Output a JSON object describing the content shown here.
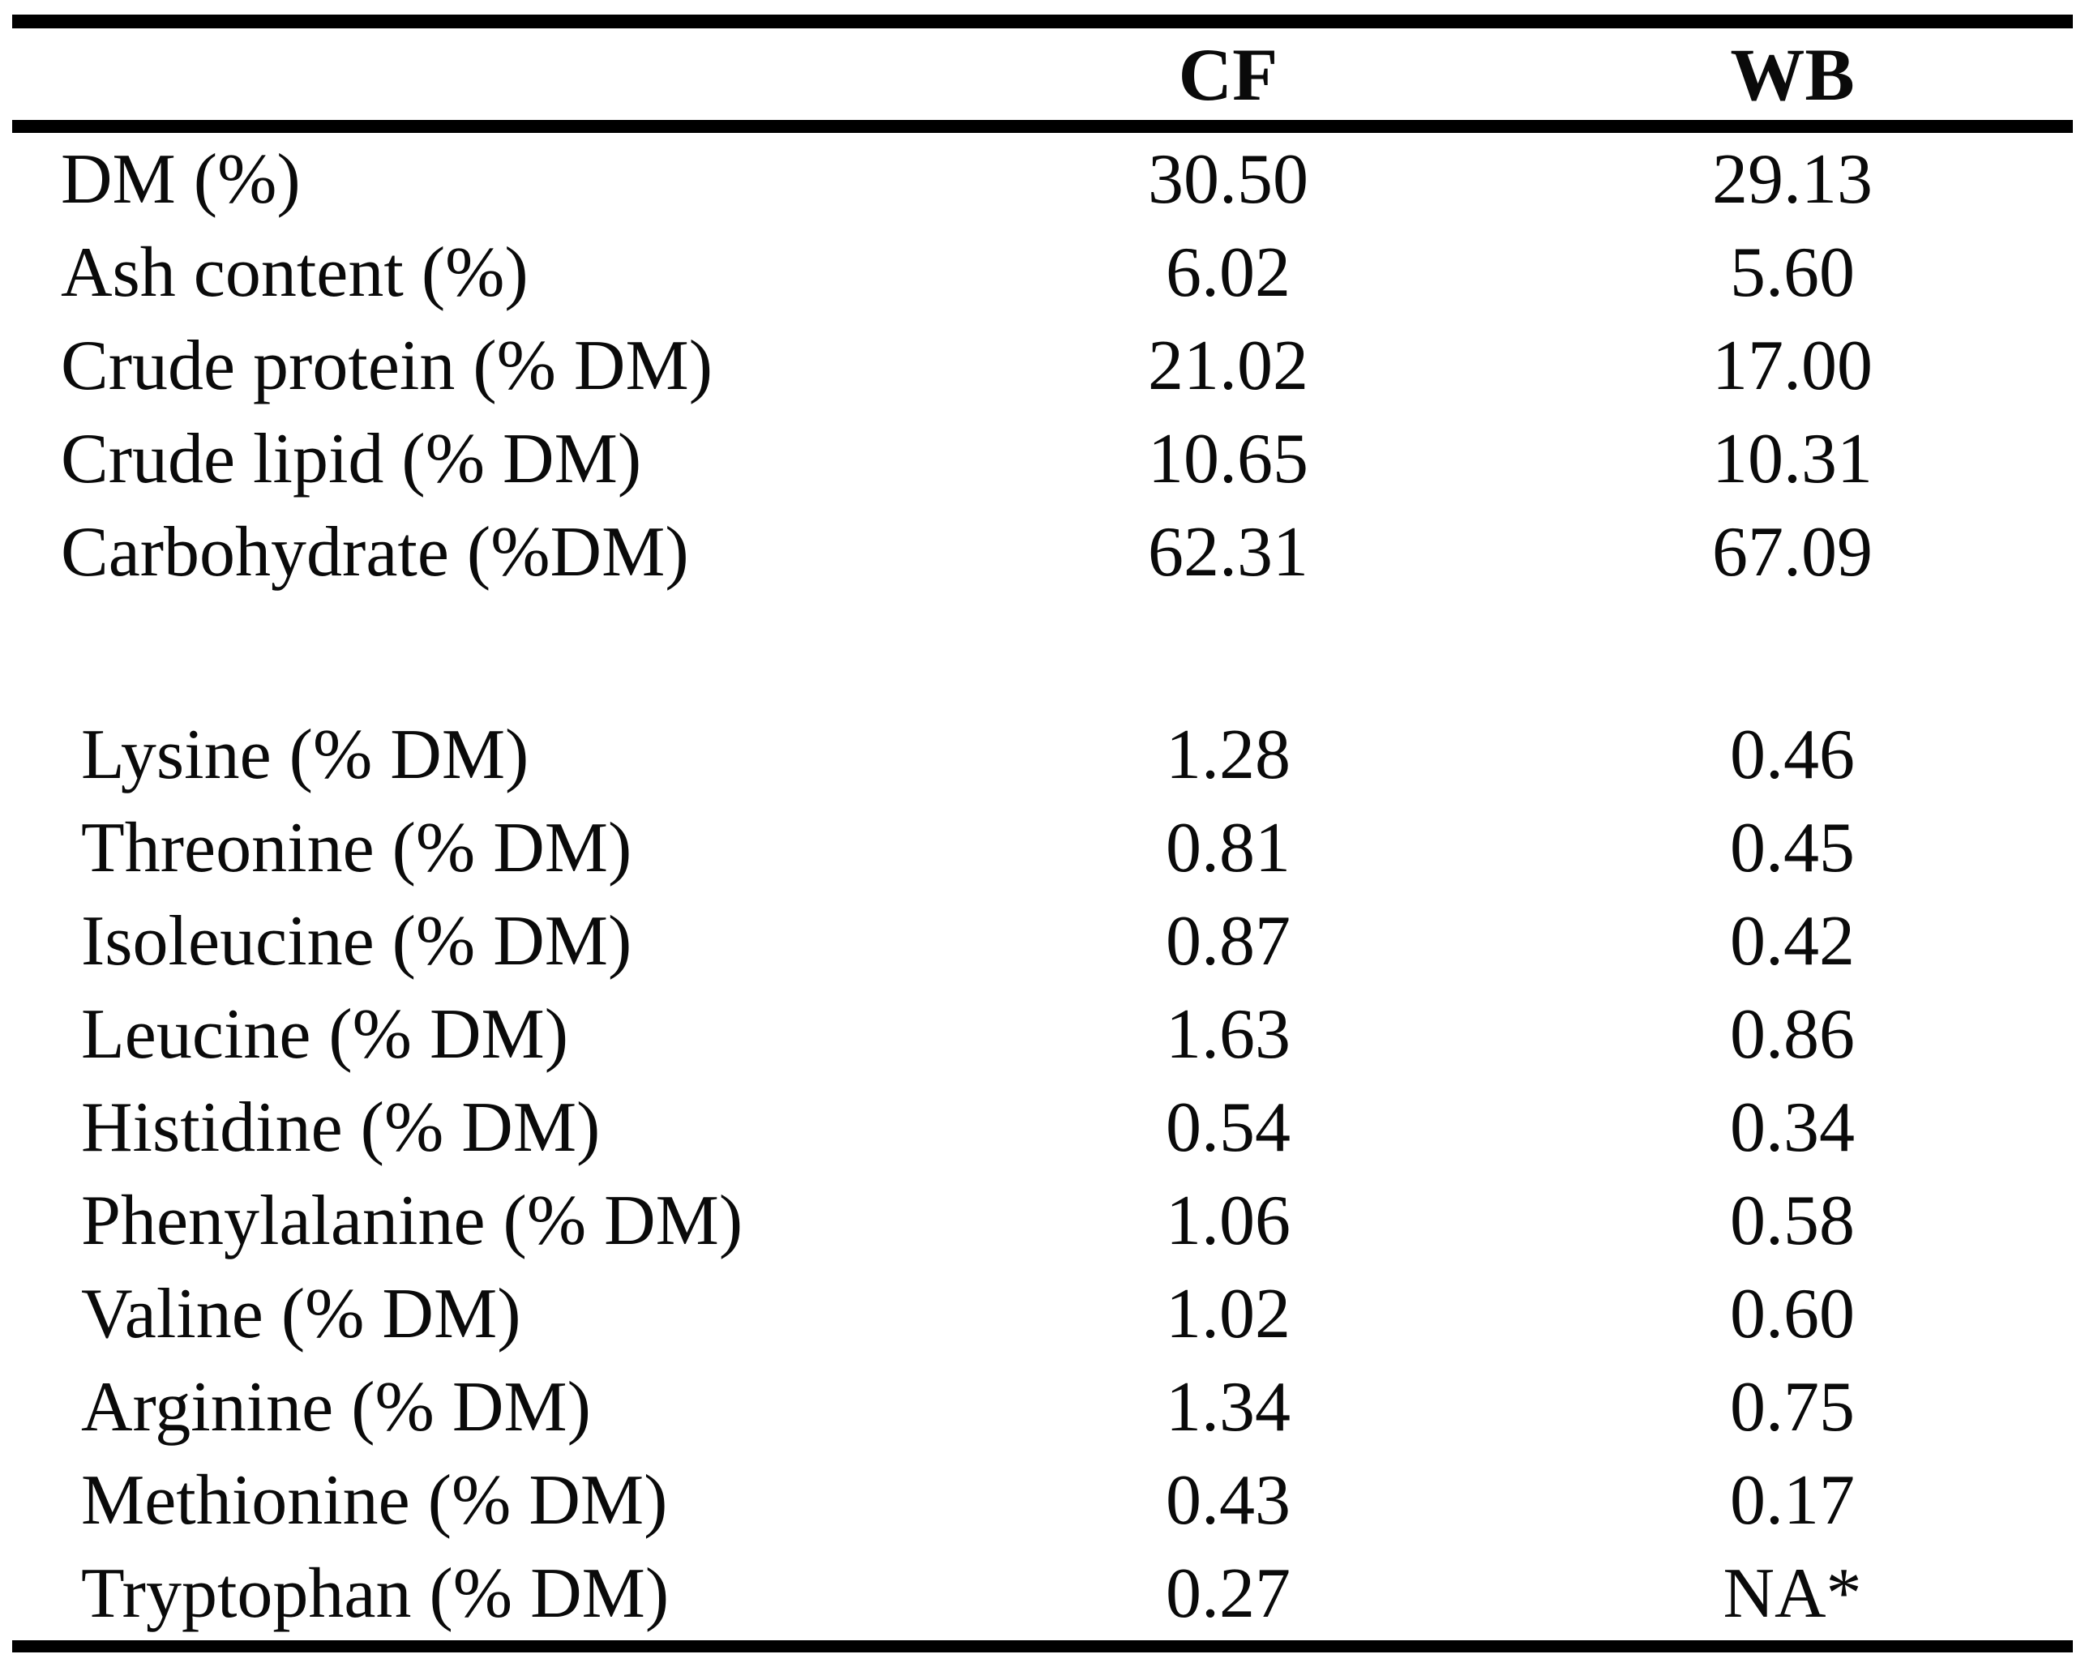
{
  "table": {
    "header": {
      "label_col": "",
      "cf": "CF",
      "wb": "WB"
    },
    "rows": [
      {
        "label": "DM (%)",
        "cf": "30.50",
        "wb": "29.13"
      },
      {
        "label": "Ash content (%)",
        "cf": "6.02",
        "wb": "5.60"
      },
      {
        "label": "Crude protein (% DM)",
        "cf": "21.02",
        "wb": "17.00"
      },
      {
        "label": "Crude lipid (% DM)",
        "cf": "10.65",
        "wb": "10.31"
      },
      {
        "label": "Carbohydrate (%DM)",
        "cf": "62.31",
        "wb": "67.09"
      },
      {
        "label": "Lysine (% DM)",
        "cf": "1.28",
        "wb": "0.46"
      },
      {
        "label": "Threonine (% DM)",
        "cf": "0.81",
        "wb": "0.45"
      },
      {
        "label": "Isoleucine (% DM)",
        "cf": "0.87",
        "wb": "0.42"
      },
      {
        "label": "Leucine (% DM)",
        "cf": "1.63",
        "wb": "0.86"
      },
      {
        "label": "Histidine (% DM)",
        "cf": "0.54",
        "wb": "0.34"
      },
      {
        "label": "Phenylalanine (% DM)",
        "cf": "1.06",
        "wb": "0.58"
      },
      {
        "label": "Valine (% DM)",
        "cf": "1.02",
        "wb": "0.60"
      },
      {
        "label": "Arginine (% DM)",
        "cf": "1.34",
        "wb": "0.75"
      },
      {
        "label": "Methionine (% DM)",
        "cf": "0.43",
        "wb": "0.17"
      },
      {
        "label": "Tryptophan (% DM)",
        "cf": "0.27",
        "wb": "NA*"
      }
    ]
  }
}
